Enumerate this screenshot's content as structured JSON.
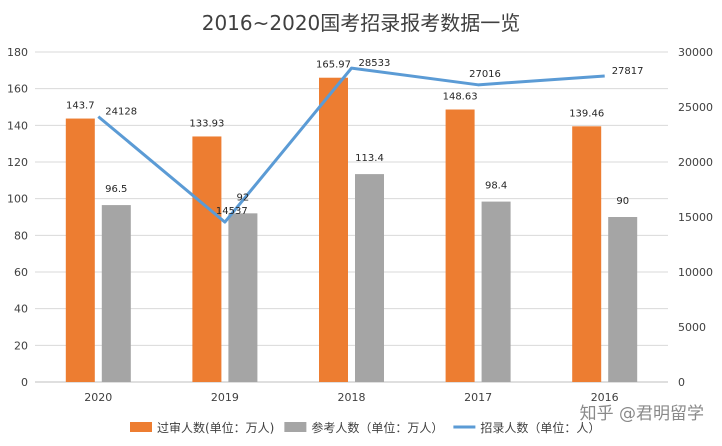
{
  "chart_data": {
    "type": "bar",
    "title": "2016~2020国考招录报考数据一览",
    "categories": [
      "2020",
      "2019",
      "2018",
      "2017",
      "2016"
    ],
    "series": [
      {
        "name": "过审人数(单位：万人)",
        "type": "bar",
        "axis": "left",
        "color": "#ED7D31",
        "values": [
          143.7,
          133.93,
          165.97,
          148.63,
          139.46
        ]
      },
      {
        "name": "参考人数（单位：万人）",
        "type": "bar",
        "axis": "left",
        "color": "#A5A5A5",
        "values": [
          96.5,
          92,
          113.4,
          98.4,
          90
        ]
      },
      {
        "name": "招录人数（单位：人）",
        "type": "line",
        "axis": "right",
        "color": "#5B9BD5",
        "values": [
          24128,
          14537,
          28533,
          27016,
          27817
        ]
      }
    ],
    "y_left": {
      "min": 0,
      "max": 180,
      "step": 20
    },
    "y_right": {
      "min": 0,
      "max": 30000,
      "step": 5000
    },
    "grid": true,
    "legend_position": "bottom"
  },
  "watermark": "知乎 @君明留学"
}
